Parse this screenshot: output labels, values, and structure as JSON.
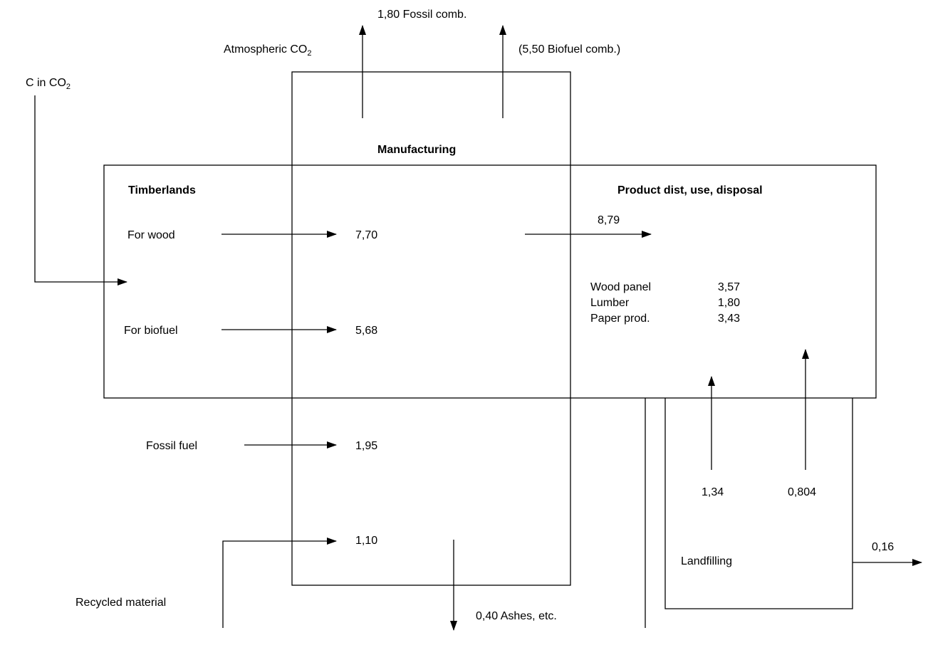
{
  "diagram": {
    "top": {
      "fossil_comb": "1,80 Fossil comb.",
      "atmospheric_co2_prefix": "Atmospheric CO",
      "co2_subscript": "2",
      "biofuel_comb": "(5,50 Biofuel comb.)",
      "c_in_co2_prefix": "C in CO"
    },
    "boxes": {
      "manufacturing": "Manufacturing",
      "timberlands": "Timberlands",
      "product": "Product dist, use, disposal",
      "landfilling": "Landfilling"
    },
    "flows": {
      "for_wood_label": "For wood",
      "for_wood_value": "7,70",
      "for_biofuel_label": "For biofuel",
      "for_biofuel_value": "5,68",
      "fossil_fuel_label": "Fossil fuel",
      "fossil_fuel_value": "1,95",
      "recycled_label": "Recycled material",
      "recycled_value": "1,10",
      "ashes": "0,40 Ashes, etc.",
      "to_product_value": "8,79",
      "landfill_up_1": "1,34",
      "landfill_up_2": "0,804",
      "landfill_out": "0,16"
    },
    "products": [
      {
        "name": "Wood panel",
        "value": "3,57"
      },
      {
        "name": "Lumber",
        "value": "1,80"
      },
      {
        "name": "Paper prod.",
        "value": "3,43"
      }
    ]
  }
}
